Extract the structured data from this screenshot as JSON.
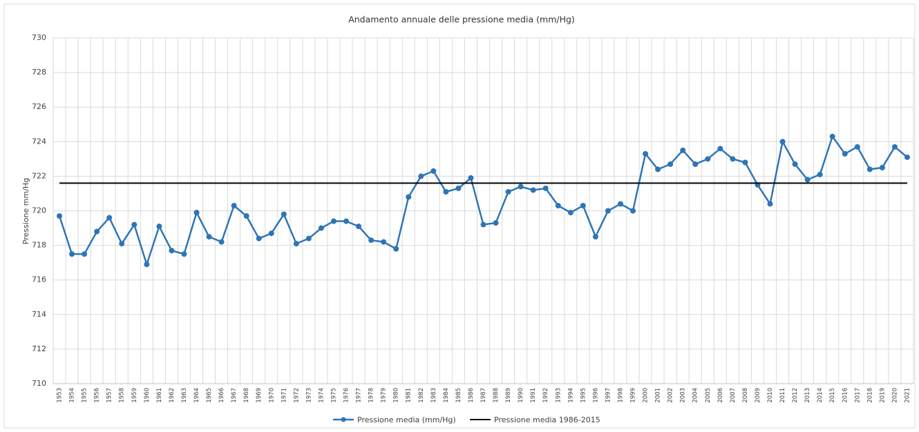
{
  "chart_data": {
    "type": "line",
    "title": "Andamento annuale delle pressione media (mm/Hg)",
    "y_label": "Pressione mm/Hg",
    "categories": [
      "1953",
      "1954",
      "1955",
      "1956",
      "1957",
      "1958",
      "1959",
      "1960",
      "1961",
      "1962",
      "1963",
      "1964",
      "1965",
      "1966",
      "1967",
      "1968",
      "1969",
      "1970",
      "1971",
      "1972",
      "1973",
      "1974",
      "1975",
      "1976",
      "1977",
      "1978",
      "1979",
      "1980",
      "1981",
      "1982",
      "1983",
      "1984",
      "1985",
      "1986",
      "1987",
      "1988",
      "1989",
      "1990",
      "1991",
      "1992",
      "1993",
      "1994",
      "1995",
      "1996",
      "1997",
      "1998",
      "1999",
      "2000",
      "2001",
      "2002",
      "2003",
      "2004",
      "2005",
      "2006",
      "2007",
      "2008",
      "2009",
      "2010",
      "2011",
      "2012",
      "2013",
      "2014",
      "2015",
      "2016",
      "2017",
      "2018",
      "2019",
      "2020",
      "2021"
    ],
    "series": [
      {
        "name": "Pressione media (mm/Hg)",
        "color": "#2e75b6",
        "markers": true,
        "values": [
          719.7,
          717.5,
          717.5,
          718.8,
          719.6,
          718.1,
          719.2,
          716.9,
          719.1,
          717.7,
          717.5,
          719.9,
          718.5,
          718.2,
          720.3,
          719.7,
          718.4,
          718.7,
          719.8,
          718.1,
          718.4,
          719.0,
          719.4,
          719.4,
          719.1,
          718.3,
          718.2,
          717.8,
          720.8,
          722.0,
          722.3,
          721.1,
          721.3,
          721.9,
          719.2,
          719.3,
          721.1,
          721.4,
          721.2,
          721.3,
          720.3,
          719.9,
          720.3,
          718.5,
          720.0,
          720.4,
          720.0,
          723.3,
          722.4,
          722.7,
          723.5,
          722.7,
          723.0,
          723.6,
          723.0,
          722.8,
          721.5,
          720.4,
          724.0,
          722.7,
          721.8,
          722.1,
          724.3,
          723.3,
          723.7,
          722.4,
          722.5,
          723.7,
          723.1
        ]
      },
      {
        "name": "Pressione media 1986-2015",
        "color": "#000000",
        "markers": false,
        "values": [
          721.6,
          721.6,
          721.6,
          721.6,
          721.6,
          721.6,
          721.6,
          721.6,
          721.6,
          721.6,
          721.6,
          721.6,
          721.6,
          721.6,
          721.6,
          721.6,
          721.6,
          721.6,
          721.6,
          721.6,
          721.6,
          721.6,
          721.6,
          721.6,
          721.6,
          721.6,
          721.6,
          721.6,
          721.6,
          721.6,
          721.6,
          721.6,
          721.6,
          721.6,
          721.6,
          721.6,
          721.6,
          721.6,
          721.6,
          721.6,
          721.6,
          721.6,
          721.6,
          721.6,
          721.6,
          721.6,
          721.6,
          721.6,
          721.6,
          721.6,
          721.6,
          721.6,
          721.6,
          721.6,
          721.6,
          721.6,
          721.6,
          721.6,
          721.6,
          721.6,
          721.6,
          721.6,
          721.6,
          721.6,
          721.6,
          721.6,
          721.6,
          721.6,
          721.6
        ]
      }
    ],
    "ylim": [
      710,
      730
    ],
    "yticks": [
      710,
      712,
      714,
      716,
      718,
      720,
      722,
      724,
      726,
      728,
      730
    ],
    "grid": true
  }
}
